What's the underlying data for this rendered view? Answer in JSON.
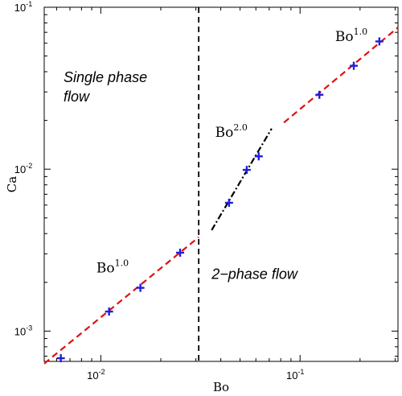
{
  "chart_data": {
    "type": "scatter",
    "xlabel": "Bo",
    "ylabel": "Ca",
    "xscale": "log",
    "yscale": "log",
    "xlim": [
      0.0052,
      0.31
    ],
    "ylim": [
      0.00065,
      0.1
    ],
    "grid": false,
    "x_ticks": [
      {
        "value": 0.01,
        "base": "10",
        "exp": "-2"
      },
      {
        "value": 0.1,
        "base": "10",
        "exp": "-1"
      }
    ],
    "y_ticks": [
      {
        "value": 0.001,
        "base": "10",
        "exp": "-3"
      },
      {
        "value": 0.01,
        "base": "10",
        "exp": "-2"
      },
      {
        "value": 0.1,
        "base": "10",
        "exp": "-1"
      }
    ],
    "points": {
      "marker": "+",
      "color": "#1f1fdc",
      "x": [
        0.0063,
        0.011,
        0.0158,
        0.025,
        0.044,
        0.054,
        0.062,
        0.125,
        0.186,
        0.25
      ],
      "y": [
        0.00068,
        0.00132,
        0.00185,
        0.00305,
        0.0062,
        0.0099,
        0.012,
        0.0288,
        0.0435,
        0.0615
      ]
    },
    "fits": [
      {
        "label_base": "Bo",
        "label_exp": "1.0",
        "color": "#e01010",
        "style": "dashed",
        "x": [
          0.0052,
          0.031
        ],
        "y": [
          0.00063,
          0.0038
        ],
        "label_at": [
          0.0095,
          0.0023
        ]
      },
      {
        "label_base": "Bo",
        "label_exp": "1.0",
        "color": "#e01010",
        "style": "dashed",
        "x": [
          0.083,
          0.31
        ],
        "y": [
          0.0194,
          0.075
        ],
        "label_at": [
          0.15,
          0.062
        ]
      },
      {
        "label_base": "Bo",
        "label_exp": "2.0",
        "color": "#000000",
        "style": "dashdot",
        "x": [
          0.036,
          0.072
        ],
        "y": [
          0.0042,
          0.0178
        ],
        "label_at": [
          0.0375,
          0.0158
        ]
      }
    ],
    "boundary": {
      "x": 0.031,
      "color": "#000000",
      "style": "dashed"
    },
    "annotations": [
      {
        "lines": [
          "Single phase",
          "flow"
        ],
        "at": [
          0.0065,
          0.0345
        ],
        "italic": true
      },
      {
        "lines": [
          "2−phase flow"
        ],
        "at": [
          0.036,
          0.0021
        ],
        "italic": true
      }
    ]
  }
}
